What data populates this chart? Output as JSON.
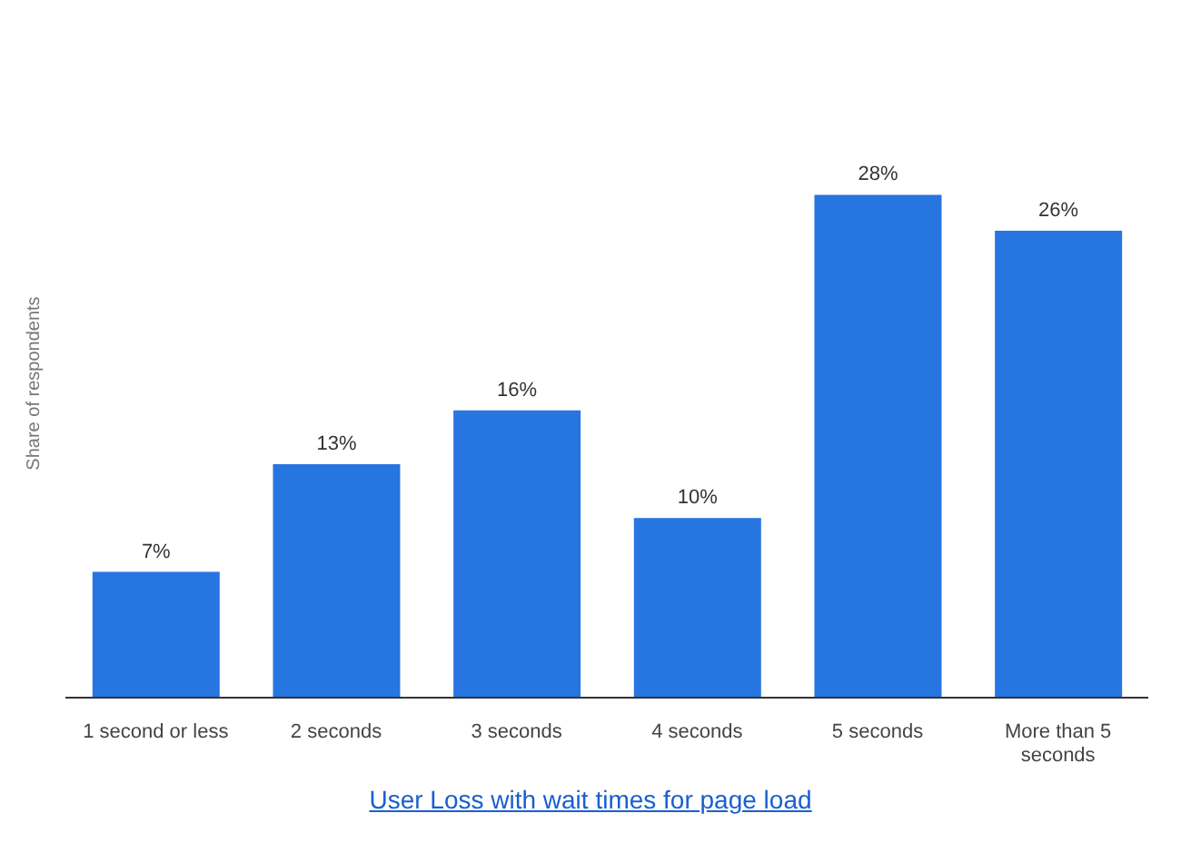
{
  "chart_data": {
    "type": "bar",
    "ylabel": "Share of respondents",
    "categories": [
      "1 second or less",
      "2 seconds",
      "3 seconds",
      "4 seconds",
      "5 seconds",
      "More than 5 seconds"
    ],
    "values": [
      7,
      13,
      16,
      10,
      28,
      26
    ],
    "color": "#2775e0",
    "data_labels": true,
    "value_labels": [
      "7%",
      "13%",
      "16%",
      "10%",
      "28%",
      "26%"
    ],
    "tick_labels": "x",
    "annotations": [
      "User Loss with wait times for page load"
    ]
  }
}
